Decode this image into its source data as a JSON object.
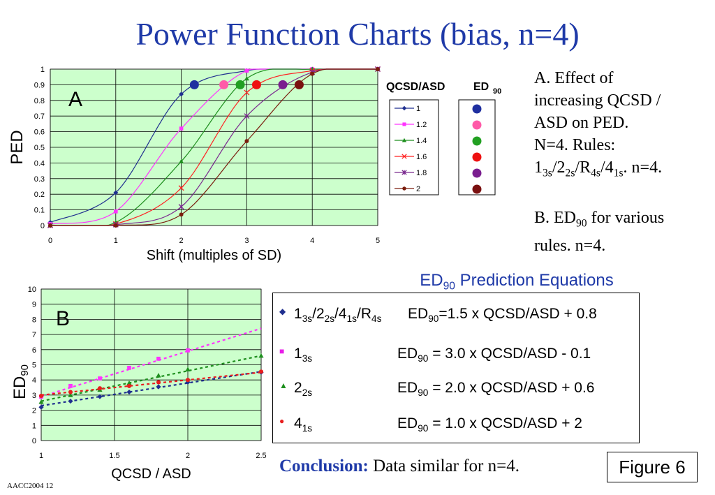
{
  "slide": {
    "title": "Power Function Charts (bias, n=4)",
    "footer": "AACC2004  12",
    "figure_label": "Figure 6"
  },
  "right_text": {
    "a_line1": "A. Effect of",
    "a_line2": "increasing QCSD /",
    "a_line3": "ASD on PED.",
    "a_line4": "N=4. Rules:",
    "b_text": "B. ED",
    "b_sub": "90",
    "b_tail": " for various",
    "b_line2": "rules. n=4."
  },
  "equations": {
    "header": "ED",
    "header_sub": "90",
    "header_tail": " Prediction Equations",
    "rows": [
      {
        "rule": "1<sub>3s</sub>/2<sub>2s</sub>/4<sub>1s</sub>/R<sub>4s</sub>",
        "eq": "ED<sub>90</sub>=1.5 x QCSD/ASD + 0.8",
        "color": "#1f2f8f",
        "bullet": "◆"
      },
      {
        "rule": "1<sub>3s</sub>",
        "eq": "ED<sub>90</sub> = 3.0 x QCSD/ASD - 0.1",
        "color": "#e81ee8",
        "bullet": "■"
      },
      {
        "rule": "2<sub>2s</sub>",
        "eq": "ED<sub>90</sub> = 2.0 x QCSD/ASD + 0.6",
        "color": "#1e8f1e",
        "bullet": "▲"
      },
      {
        "rule": "4<sub>1s</sub>",
        "eq": "ED<sub>90</sub> = 1.0 x QCSD/ASD + 2",
        "color": "#e81e1e",
        "bullet": "●"
      }
    ]
  },
  "conclusion": {
    "label": "Conclusion:",
    "text": " Data similar for n=4."
  },
  "chart_data": [
    {
      "type": "line",
      "panel_label": "A",
      "xlabel": "Shift (multiples of SD)",
      "ylabel": "PED",
      "xlim": [
        0,
        5
      ],
      "ylim": [
        0,
        1
      ],
      "xticks": [
        0,
        1,
        2,
        3,
        4,
        5
      ],
      "yticks": [
        "0",
        "0.1",
        "0.2",
        "0.3",
        "0.4",
        "0.5",
        "0.6",
        "0.7",
        "0.8",
        "0.9",
        "1"
      ],
      "grid": true,
      "legend_title": "QCSD/ASD",
      "legend2_title": "ED",
      "legend2_sub": "90",
      "series": [
        {
          "name": "1",
          "color": "#1f2f8f",
          "marker": "diamond",
          "points": [
            [
              0,
              0.02
            ],
            [
              1,
              0.21
            ],
            [
              2,
              0.84
            ],
            [
              3,
              0.99
            ],
            [
              4,
              1
            ],
            [
              5,
              1
            ]
          ]
        },
        {
          "name": "1.2",
          "color": "#ff33ff",
          "marker": "square",
          "points": [
            [
              0,
              0.01
            ],
            [
              1,
              0.09
            ],
            [
              2,
              0.62
            ],
            [
              3,
              0.99
            ],
            [
              4,
              1
            ],
            [
              5,
              1
            ]
          ]
        },
        {
          "name": "1.4",
          "color": "#1e8f1e",
          "marker": "triangle",
          "points": [
            [
              0,
              0.003
            ],
            [
              1,
              0.02
            ],
            [
              2,
              0.41
            ],
            [
              3,
              0.94
            ],
            [
              4,
              1
            ],
            [
              5,
              1
            ]
          ]
        },
        {
          "name": "1.6",
          "color": "#ff2222",
          "marker": "x",
          "points": [
            [
              0,
              0.001
            ],
            [
              1,
              0.01
            ],
            [
              2,
              0.24
            ],
            [
              3,
              0.85
            ],
            [
              4,
              0.99
            ],
            [
              5,
              1
            ]
          ]
        },
        {
          "name": "1.8",
          "color": "#7a2a8f",
          "marker": "star",
          "points": [
            [
              0,
              0
            ],
            [
              1,
              0.005
            ],
            [
              2,
              0.12
            ],
            [
              3,
              0.7
            ],
            [
              4,
              0.98
            ],
            [
              5,
              1
            ]
          ]
        },
        {
          "name": "2",
          "color": "#7a1e0e",
          "marker": "circle",
          "points": [
            [
              0,
              0
            ],
            [
              1,
              0
            ],
            [
              2,
              0.07
            ],
            [
              3,
              0.54
            ],
            [
              4,
              0.97
            ],
            [
              5,
              1
            ]
          ]
        }
      ],
      "ed90_points": [
        {
          "x": 2.2,
          "color": "#1f2fa0"
        },
        {
          "x": 2.65,
          "color": "#ff5aa8"
        },
        {
          "x": 2.9,
          "color": "#22a022"
        },
        {
          "x": 3.15,
          "color": "#ee1111"
        },
        {
          "x": 3.55,
          "color": "#7a1e8f"
        },
        {
          "x": 3.8,
          "color": "#7a1010"
        }
      ]
    },
    {
      "type": "scatter",
      "panel_label": "B",
      "xlabel": "QCSD / ASD",
      "ylabel": "ED",
      "ylabel_sub": "90",
      "xlim": [
        1,
        2.5
      ],
      "ylim": [
        0,
        10
      ],
      "xticks": [
        "1",
        "1.5",
        "2",
        "2.5"
      ],
      "yticks": [
        "0",
        "1",
        "2",
        "3",
        "4",
        "5",
        "6",
        "7",
        "8",
        "9",
        "10"
      ],
      "grid": true,
      "x": [
        1,
        1.2,
        1.4,
        1.6,
        1.8,
        2,
        2.5
      ],
      "series": [
        {
          "name": "1<sub>3s</sub>/2<sub>2s</sub>/4<sub>1s</sub>/R<sub>4s</sub>",
          "color": "#1f2f8f",
          "marker": "diamond",
          "x": [
            1,
            1.2,
            1.4,
            1.6,
            1.8,
            2,
            2.5
          ],
          "values": [
            2.2,
            2.6,
            2.9,
            3.2,
            3.55,
            3.85,
            4.5
          ],
          "trend": [
            1.5,
            0.8
          ]
        },
        {
          "name": "1<sub>3s</sub>",
          "color": "#ff33ff",
          "marker": "square",
          "x": [
            1,
            1.2,
            1.4,
            1.6,
            1.8,
            2
          ],
          "values": [
            2.9,
            3.6,
            4.1,
            4.8,
            5.4,
            5.95
          ],
          "trend": [
            3.0,
            -0.1
          ]
        },
        {
          "name": "2<sub>2s</sub>",
          "color": "#1e8f1e",
          "marker": "triangle",
          "x": [
            1,
            1.2,
            1.4,
            1.6,
            1.8,
            2,
            2.5
          ],
          "values": [
            2.55,
            3.0,
            3.35,
            3.8,
            4.3,
            4.7,
            5.6
          ],
          "trend": [
            2.0,
            0.6
          ]
        },
        {
          "name": "4<sub>1s</sub>",
          "color": "#e81e1e",
          "marker": "circle",
          "x": [
            1,
            1.2,
            1.4,
            1.6,
            1.8,
            2,
            2.5
          ],
          "values": [
            2.95,
            3.2,
            3.45,
            3.6,
            3.85,
            4.0,
            4.55
          ],
          "trend": [
            1.0,
            2.0
          ]
        }
      ]
    }
  ]
}
